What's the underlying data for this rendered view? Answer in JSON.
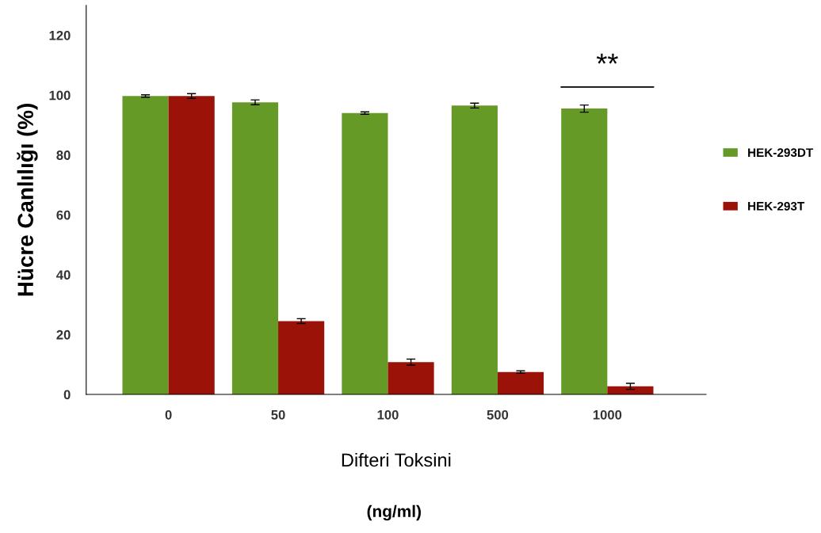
{
  "chart_data": {
    "type": "bar",
    "ylabel": "Hücre Canlılığı (%)",
    "xlabel": "Difteri Toksini",
    "categories": [
      "0",
      "50",
      "100",
      "500",
      "1000"
    ],
    "series": [
      {
        "name": "HEK-293DT",
        "color": "#669a26",
        "values": [
          99.7,
          97.6,
          94,
          96.5,
          95.5
        ],
        "errors": [
          0.4,
          0.8,
          0.4,
          0.8,
          1.2
        ]
      },
      {
        "name": "HEK-293T",
        "color": "#9b1208",
        "values": [
          99.7,
          24.5,
          10.8,
          7.5,
          2.7
        ],
        "errors": [
          0.8,
          0.8,
          1,
          0.4,
          1
        ]
      }
    ],
    "ylim": [
      0,
      130
    ],
    "yticks": [
      0,
      20,
      40,
      60,
      80,
      100,
      120
    ],
    "grid": false,
    "legend": "right",
    "annotations": [
      "**",
      "(ng/ml)"
    ]
  }
}
